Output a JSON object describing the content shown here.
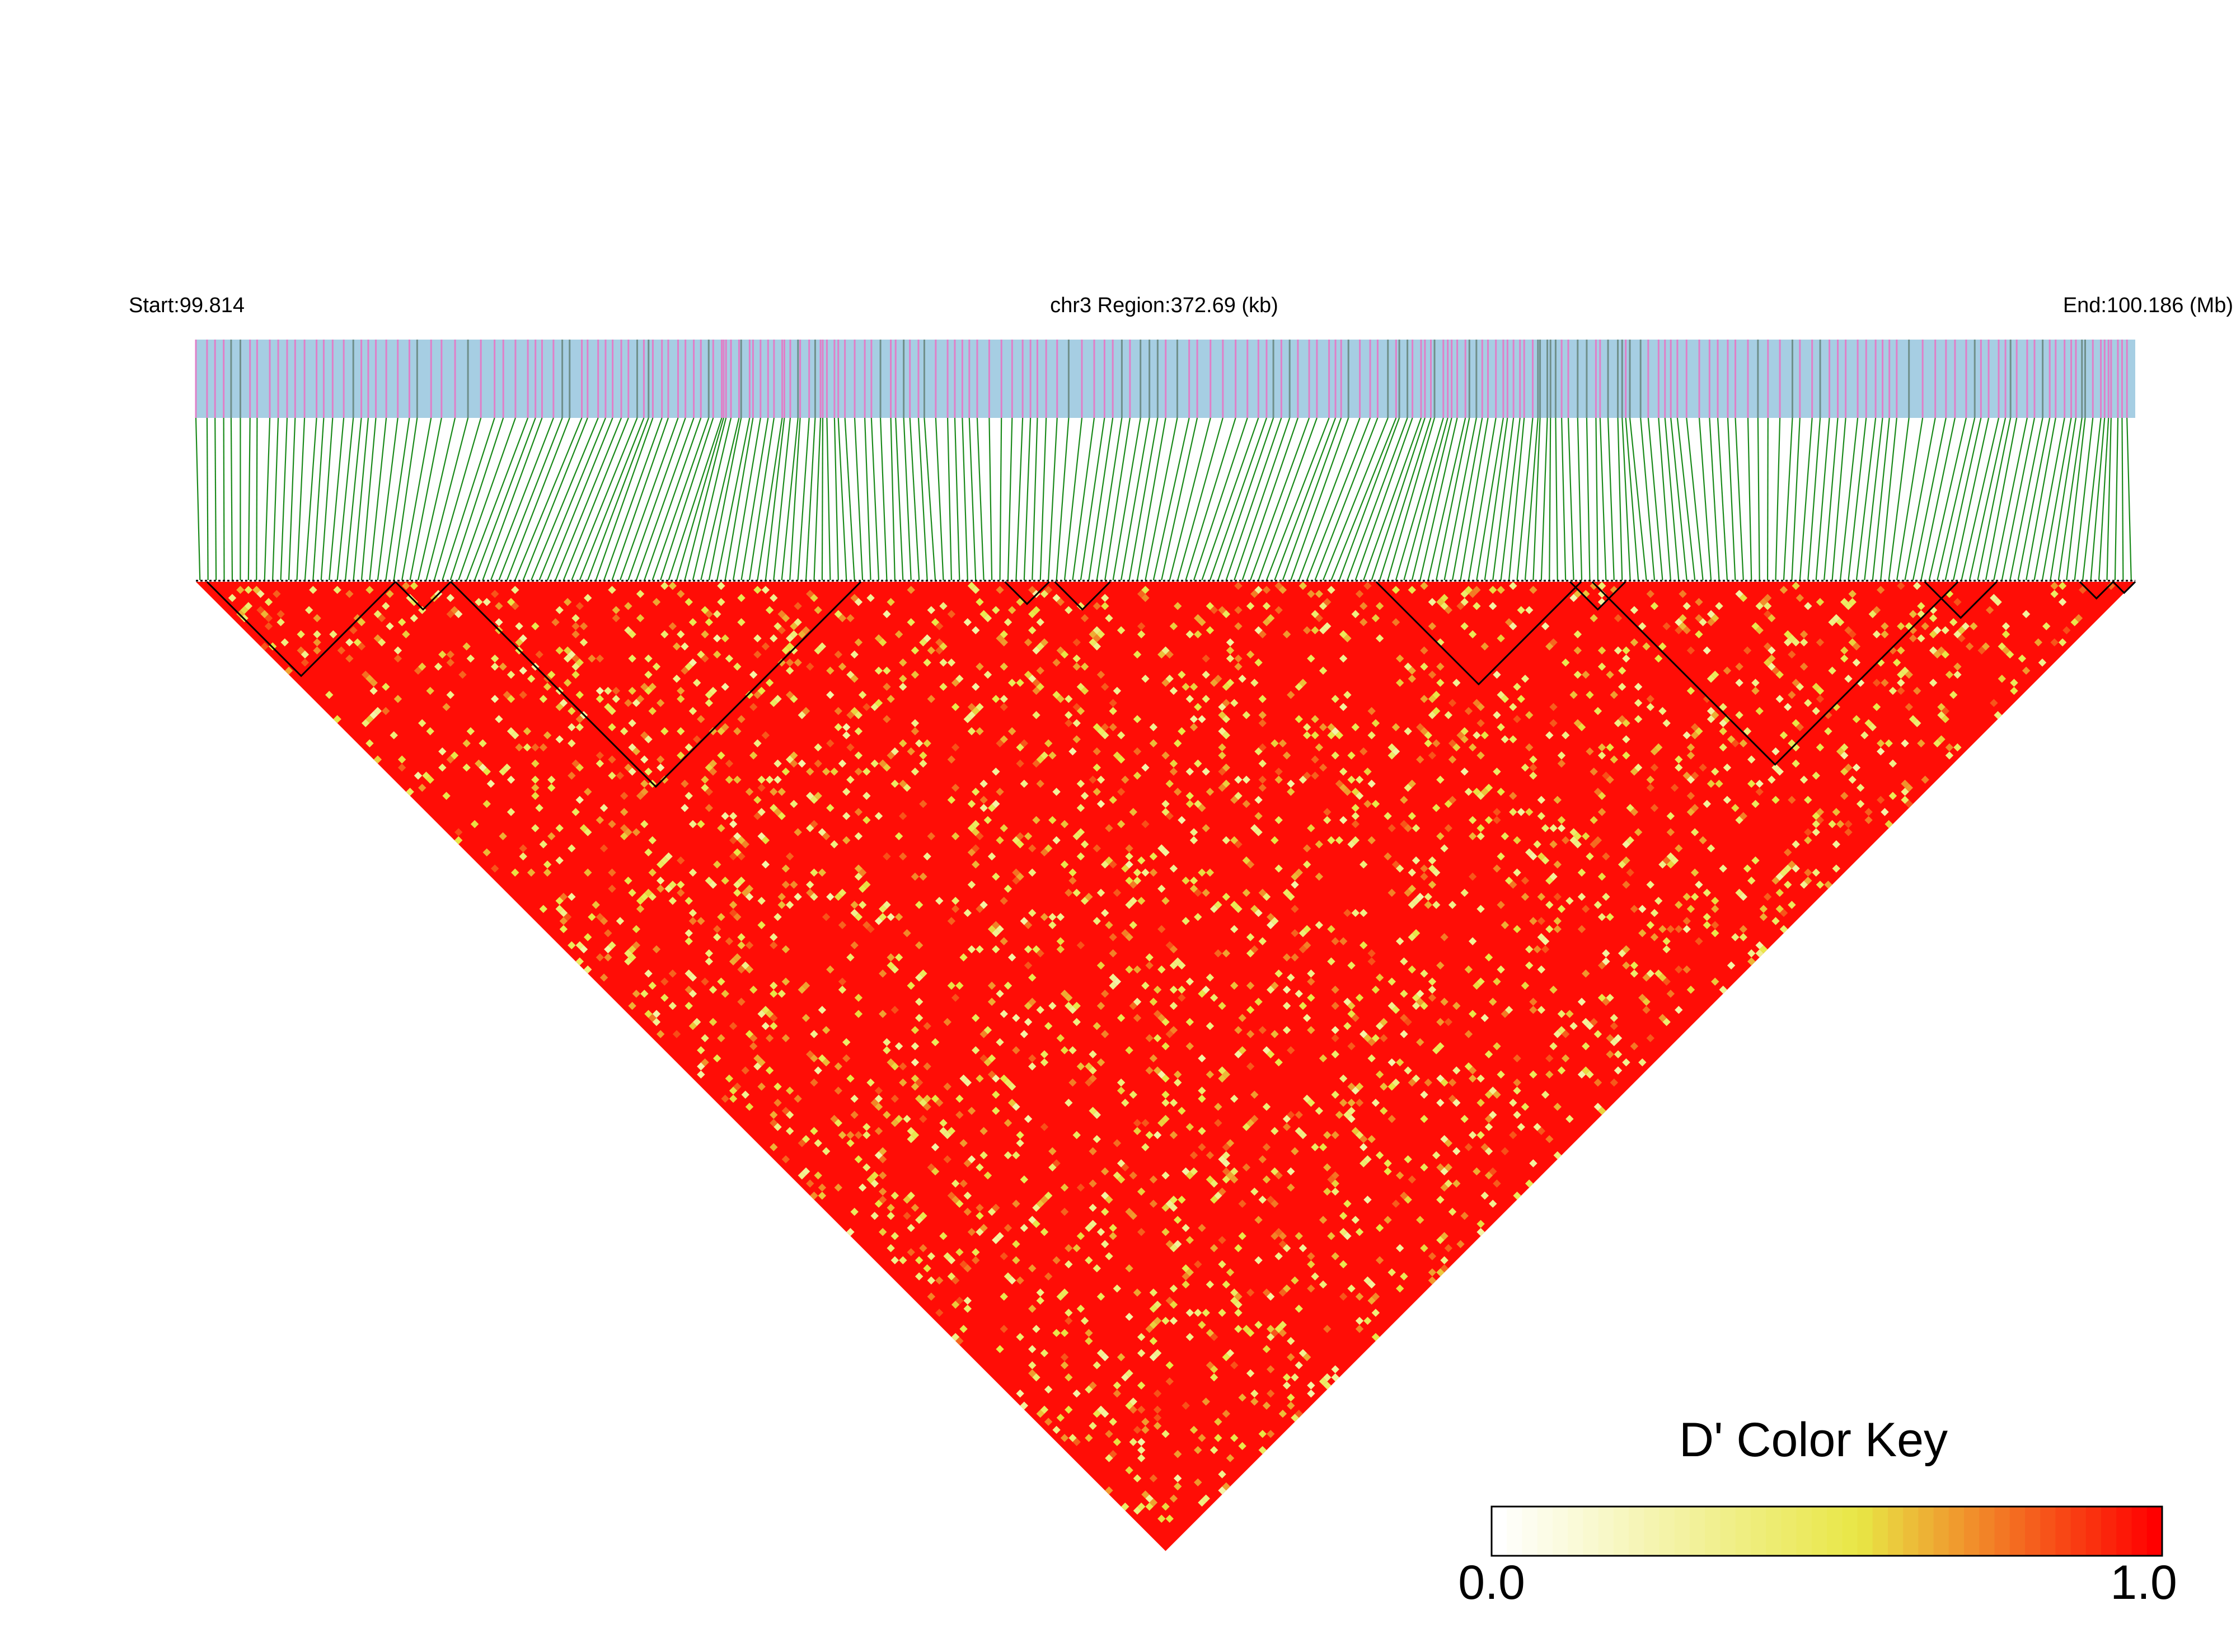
{
  "chart_data": {
    "type": "heatmap",
    "subtype": "linkage-disequilibrium triangle",
    "header": {
      "start_label": "Start:99.814",
      "region_label": "chr3 Region:372.69 (kb)",
      "end_label": "End:100.186 (Mb)"
    },
    "region": {
      "chromosome": "chr3",
      "start_mb": 99.814,
      "end_mb": 100.186,
      "length_kb": 372.69
    },
    "statistic": "D'",
    "snp_count_approx": 240,
    "haplotype_blocks_approx": [
      {
        "from_snp": 2,
        "to_snp": 36
      },
      {
        "from_snp": 36,
        "to_snp": 46
      },
      {
        "from_snp": 46,
        "to_snp": 120
      },
      {
        "from_snp": 146,
        "to_snp": 154
      },
      {
        "from_snp": 155,
        "to_snp": 165
      },
      {
        "from_snp": 213,
        "to_snp": 250
      },
      {
        "from_snp": 248,
        "to_snp": 258
      },
      {
        "from_snp": 252,
        "to_snp": 318
      },
      {
        "from_snp": 312,
        "to_snp": 325
      },
      {
        "from_snp": 340,
        "to_snp": 346
      },
      {
        "from_snp": 346,
        "to_snp": 350
      }
    ],
    "color_key": {
      "title": "D' Color Key",
      "min_label": "0.0",
      "max_label": "1.0",
      "range": [
        0.0,
        1.0
      ],
      "colors": {
        "low": "#ffffff",
        "mid": "#e8e645",
        "high": "#ff0000"
      }
    },
    "track_colors": {
      "band": "#a6cee3",
      "marker_pink": "#e07fc8",
      "marker_dark": "#6f8f8a",
      "connector": "#1a8a1a",
      "block_outline": "#000000"
    }
  }
}
